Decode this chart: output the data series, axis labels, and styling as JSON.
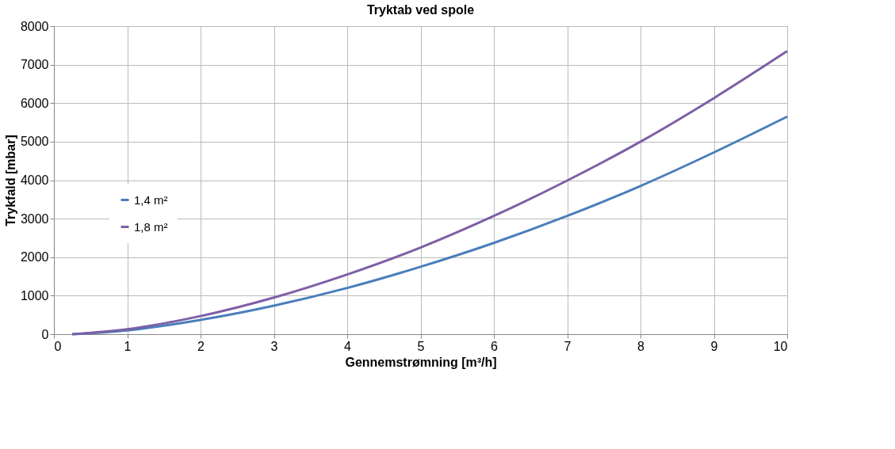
{
  "chart_data": {
    "type": "line",
    "title": "Tryktab ved spole",
    "xlabel": "Gennemstrømning [m³/h]",
    "ylabel": "Trykfald  [mbar]",
    "x": [
      0.25,
      1,
      2,
      3,
      4,
      5,
      6,
      7,
      8,
      9,
      10
    ],
    "series": [
      {
        "name": "1,4 m²",
        "color": "#4a7ebb",
        "values": [
          0,
          100,
          370,
          740,
          1200,
          1750,
          2370,
          3070,
          3850,
          4720,
          5650
        ]
      },
      {
        "name": "1,8 m²",
        "color": "#7d5fa6",
        "values": [
          0,
          130,
          470,
          950,
          1550,
          2250,
          3070,
          3990,
          5000,
          6130,
          7350
        ]
      }
    ],
    "xlim": [
      0,
      10
    ],
    "xticks": [
      0,
      1,
      2,
      3,
      4,
      5,
      6,
      7,
      8,
      9,
      10
    ],
    "ylim": [
      0,
      8000
    ],
    "yticks": [
      0,
      1000,
      2000,
      3000,
      4000,
      5000,
      6000,
      7000,
      8000
    ],
    "grid": true,
    "legend": "left",
    "marker": "none",
    "line_style": "solid"
  }
}
